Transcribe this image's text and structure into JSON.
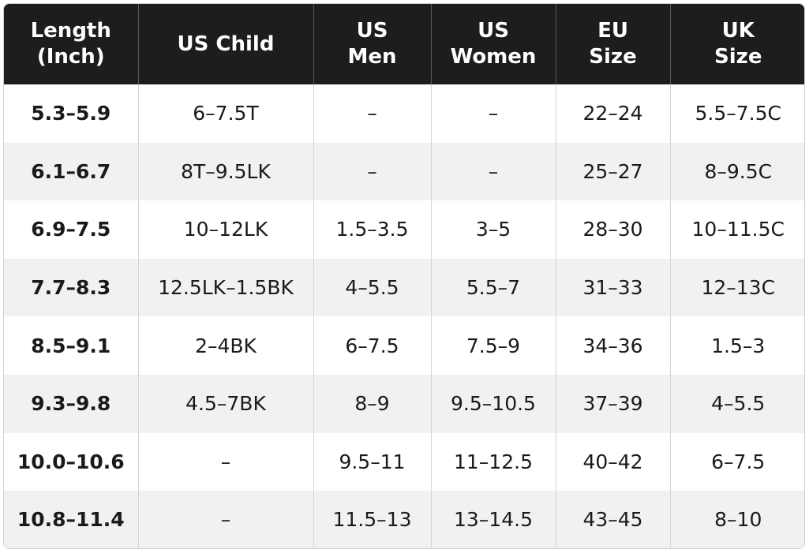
{
  "table": {
    "headers": [
      "Length\n(Inch)",
      "US Child",
      "US\nMen",
      "US\nWomen",
      "EU\nSize",
      "UK\nSize"
    ],
    "rows": [
      [
        "5.3–5.9",
        "6–7.5T",
        "–",
        "–",
        "22–24",
        "5.5–7.5C"
      ],
      [
        "6.1–6.7",
        "8T–9.5LK",
        "–",
        "–",
        "25–27",
        "8–9.5C"
      ],
      [
        "6.9–7.5",
        "10–12LK",
        "1.5–3.5",
        "3–5",
        "28–30",
        "10–11.5C"
      ],
      [
        "7.7–8.3",
        "12.5LK–1.5BK",
        "4–5.5",
        "5.5–7",
        "31–33",
        "12–13C"
      ],
      [
        "8.5–9.1",
        "2–4BK",
        "6–7.5",
        "7.5–9",
        "34–36",
        "1.5–3"
      ],
      [
        "9.3–9.8",
        "4.5–7BK",
        "8–9",
        "9.5–10.5",
        "37–39",
        "4–5.5"
      ],
      [
        "10.0–10.6",
        "–",
        "9.5–11",
        "11–12.5",
        "40–42",
        "6–7.5"
      ],
      [
        "10.8–11.4",
        "–",
        "11.5–13",
        "13–14.5",
        "43–45",
        "8–10"
      ]
    ]
  }
}
